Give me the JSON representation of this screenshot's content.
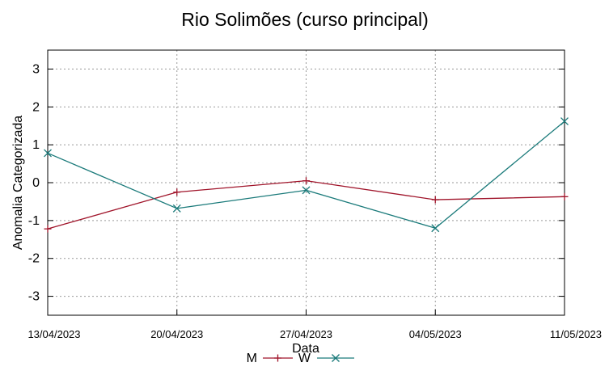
{
  "chart_data": {
    "type": "line",
    "title": "Rio Solimões (curso principal)",
    "xlabel": "Data",
    "ylabel": "Anomalia Categorizada",
    "categories": [
      "13/04/2023",
      "20/04/2023",
      "27/04/2023",
      "04/05/2023",
      "11/05/2023"
    ],
    "yticks": [
      3,
      2,
      1,
      0,
      -1,
      -2,
      -3
    ],
    "ylim": [
      -3.5,
      3.5
    ],
    "grid": true,
    "legend_position": "bottom-center",
    "series": [
      {
        "name": "M",
        "color": "#a0142a",
        "marker": "plus",
        "values": [
          -1.22,
          -0.25,
          0.05,
          -0.45,
          -0.37
        ]
      },
      {
        "name": "W",
        "color": "#1a7a7a",
        "marker": "cross",
        "values": [
          0.78,
          -0.68,
          -0.2,
          -1.2,
          1.62
        ]
      }
    ]
  }
}
